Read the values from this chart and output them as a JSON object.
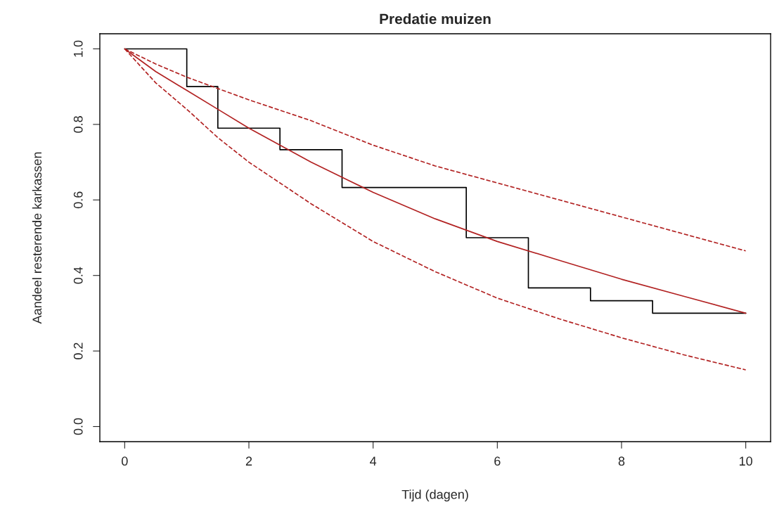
{
  "chart_data": {
    "type": "line",
    "title": "Predatie muizen",
    "xlabel": "Tijd (dagen)",
    "ylabel": "Aandeel resterende karkassen",
    "xlim": [
      -0.4,
      10.4
    ],
    "ylim": [
      -0.04,
      1.04
    ],
    "xticks": [
      0,
      2,
      4,
      6,
      8,
      10
    ],
    "yticks": [
      {
        "value": 0,
        "label": "0.0"
      },
      {
        "value": 0.2,
        "label": "0.2"
      },
      {
        "value": 0.4,
        "label": "0.4"
      },
      {
        "value": 0.6,
        "label": "0.6"
      },
      {
        "value": 0.8,
        "label": "0.8"
      },
      {
        "value": 1,
        "label": "1.0"
      }
    ],
    "grid": false,
    "legend": false,
    "series": [
      {
        "type": "step",
        "color": "#000000",
        "line_style": "solid",
        "x": [
          0,
          1,
          1.5,
          2.5,
          3.5,
          5.5,
          6.5,
          7.5,
          8.5,
          10
        ],
        "values": [
          1,
          0.9,
          0.79,
          0.733,
          0.633,
          0.5,
          0.367,
          0.333,
          0.3,
          0.3
        ]
      },
      {
        "color": "#b22222",
        "line_style": "solid",
        "x": [
          0,
          0.5,
          1,
          1.5,
          2,
          3,
          4,
          5,
          6,
          7,
          8,
          9,
          10
        ],
        "values": [
          1,
          0.94,
          0.89,
          0.84,
          0.79,
          0.7,
          0.62,
          0.55,
          0.49,
          0.44,
          0.39,
          0.345,
          0.3
        ]
      },
      {
        "color": "#b22222",
        "line_style": "dashed",
        "x": [
          0,
          0.5,
          1,
          1.5,
          2,
          3,
          4,
          5,
          6,
          7,
          8,
          9,
          10
        ],
        "values": [
          1,
          0.96,
          0.925,
          0.895,
          0.865,
          0.81,
          0.745,
          0.69,
          0.645,
          0.6,
          0.555,
          0.51,
          0.465
        ]
      },
      {
        "color": "#b22222",
        "line_style": "dashed",
        "x": [
          0,
          0.5,
          1,
          1.5,
          2,
          3,
          4,
          5,
          6,
          7,
          8,
          9,
          10
        ],
        "values": [
          1,
          0.91,
          0.84,
          0.765,
          0.7,
          0.59,
          0.49,
          0.41,
          0.34,
          0.285,
          0.235,
          0.19,
          0.15
        ]
      }
    ]
  }
}
